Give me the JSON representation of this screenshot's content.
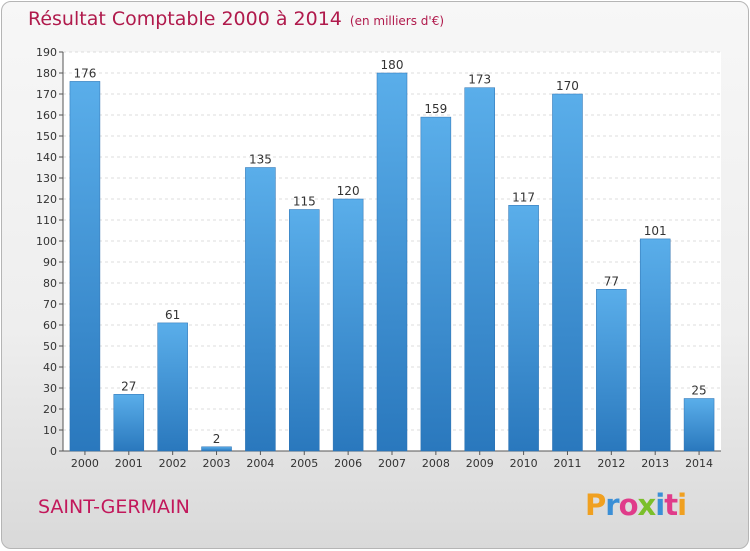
{
  "header": {
    "title": "Résultat Comptable 2000 à 2014",
    "subtitle": "(en milliers d'€)"
  },
  "footer": {
    "commune": "SAINT-GERMAIN",
    "logo_letters": [
      "P",
      "r",
      "o",
      "x",
      "i",
      "t",
      "i"
    ],
    "logo_colors": [
      "#f0a020",
      "#3b8fd6",
      "#e03c8a",
      "#7bbf2a",
      "#3b8fd6",
      "#e03c8a",
      "#f0a020"
    ]
  },
  "chart_data": {
    "type": "bar",
    "categories": [
      "2000",
      "2001",
      "2002",
      "2003",
      "2004",
      "2005",
      "2006",
      "2007",
      "2008",
      "2009",
      "2010",
      "2011",
      "2012",
      "2013",
      "2014"
    ],
    "values": [
      176,
      27,
      61,
      2,
      135,
      115,
      120,
      180,
      159,
      173,
      117,
      170,
      77,
      101,
      25
    ],
    "ylim": [
      0,
      190
    ],
    "yticks": [
      0,
      10,
      20,
      30,
      40,
      50,
      60,
      70,
      80,
      90,
      100,
      110,
      120,
      130,
      140,
      150,
      160,
      170,
      180,
      190
    ],
    "grid": true,
    "bar_color": "#3d94d8",
    "title": "Résultat Comptable 2000 à 2014",
    "xlabel": "",
    "ylabel": ""
  }
}
